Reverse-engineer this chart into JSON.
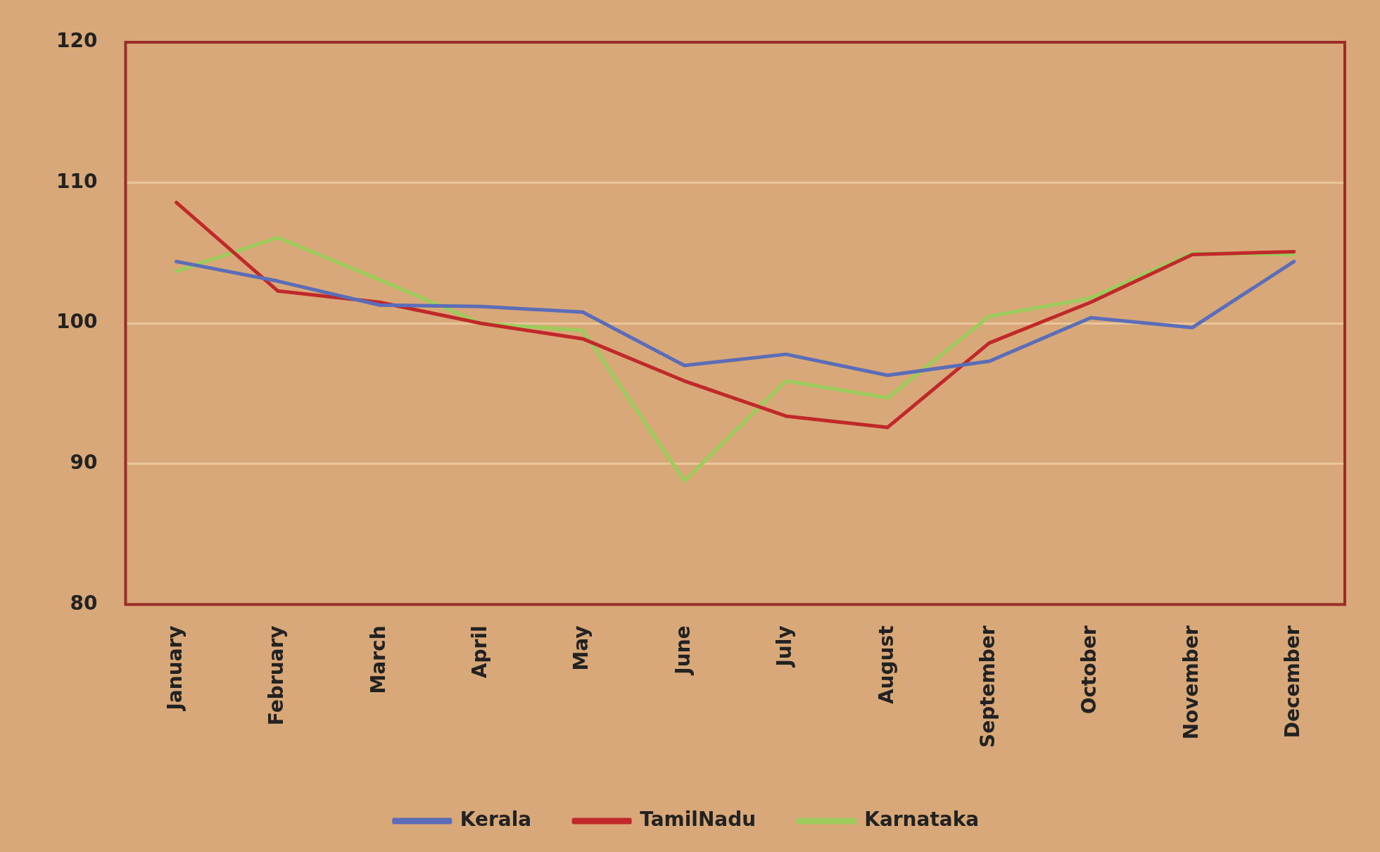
{
  "chart_data": {
    "type": "line",
    "categories": [
      "January",
      "February",
      "March",
      "April",
      "May",
      "June",
      "July",
      "August",
      "September",
      "October",
      "November",
      "December"
    ],
    "series": [
      {
        "name": "Kerala",
        "color": "#5b6cb8",
        "values": [
          104.4,
          103,
          101.3,
          101.2,
          100.8,
          97,
          97.8,
          96.3,
          97.3,
          100.4,
          99.7,
          104.4
        ]
      },
      {
        "name": "TamilNadu",
        "color": "#c0282a",
        "values": [
          108.6,
          102.3,
          101.5,
          100,
          98.9,
          95.9,
          93.4,
          92.6,
          98.6,
          101.5,
          104.9,
          105.1
        ]
      },
      {
        "name": "Karnataka",
        "color": "#9ccd5c",
        "values": [
          103.7,
          106.1,
          103.1,
          100,
          99.5,
          88.8,
          95.9,
          94.7,
          100.5,
          101.8,
          105,
          104.9
        ]
      }
    ],
    "ylim": [
      80,
      120
    ],
    "yticks": [
      80,
      90,
      100,
      110,
      120
    ],
    "grid": "y",
    "legend": "bottom",
    "marker": "none",
    "line_style": "solid"
  }
}
